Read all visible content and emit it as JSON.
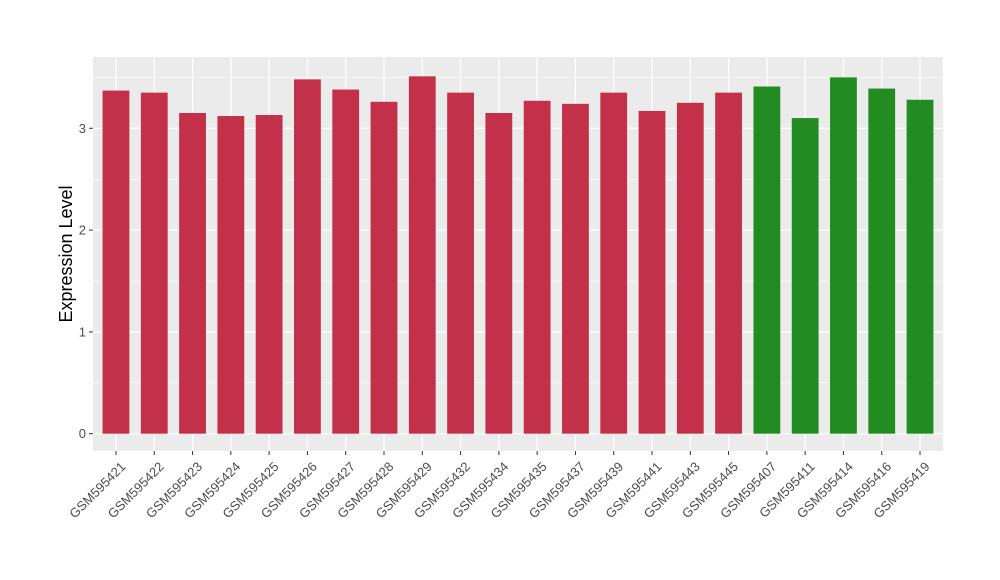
{
  "chart_data": {
    "type": "bar",
    "title": "",
    "xlabel": "",
    "ylabel": "Expression Level",
    "ylim": [
      -0.17,
      3.7
    ],
    "yticks": [
      0,
      1,
      2,
      3
    ],
    "grid": true,
    "legend": "none",
    "categories": [
      "GSM595421",
      "GSM595422",
      "GSM595423",
      "GSM595424",
      "GSM595425",
      "GSM595426",
      "GSM595427",
      "GSM595428",
      "GSM595429",
      "GSM595432",
      "GSM595434",
      "GSM595435",
      "GSM595437",
      "GSM595439",
      "GSM595441",
      "GSM595443",
      "GSM595445",
      "GSM595407",
      "GSM595411",
      "GSM595414",
      "GSM595416",
      "GSM595419"
    ],
    "values": [
      3.37,
      3.35,
      3.15,
      3.12,
      3.13,
      3.48,
      3.38,
      3.26,
      3.51,
      3.35,
      3.15,
      3.27,
      3.24,
      3.35,
      3.17,
      3.25,
      3.35,
      3.41,
      3.1,
      3.5,
      3.39,
      3.28
    ],
    "groups": [
      "red",
      "red",
      "red",
      "red",
      "red",
      "red",
      "red",
      "red",
      "red",
      "red",
      "red",
      "red",
      "red",
      "red",
      "red",
      "red",
      "red",
      "green",
      "green",
      "green",
      "green",
      "green"
    ],
    "colors": {
      "red": "#c3304a",
      "green": "#228b22",
      "panel": "#ebebeb",
      "grid": "#ffffff"
    }
  }
}
